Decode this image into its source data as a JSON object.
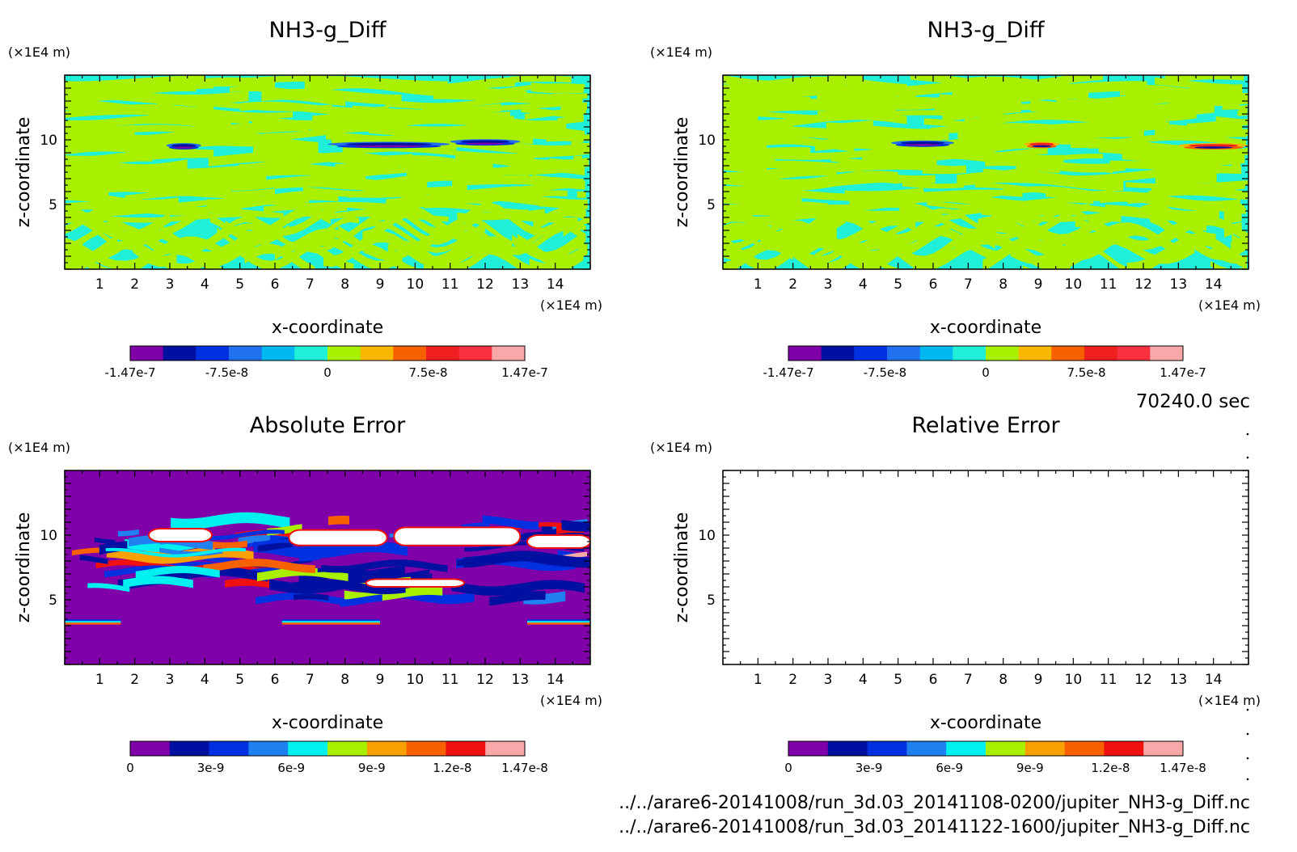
{
  "time_label": "70240.0 sec",
  "files": [
    "../../arare6-20141008/run_3d.03_20141108-0200/jupiter_NH3-g_Diff.nc",
    "../../arare6-20141008/run_3d.03_20141122-1600/jupiter_NH3-g_Diff.nc"
  ],
  "colors": {
    "diff_levels": [
      "#7f00a8",
      "#0010a0",
      "#0030e0",
      "#2070f0",
      "#00b8f0",
      "#20f0d8",
      "#a8f000",
      "#f8b800",
      "#f86000",
      "#f02020",
      "#f83040",
      "#f8a8a8"
    ],
    "err_levels": [
      "#7f00a8",
      "#0010a0",
      "#0030e0",
      "#2080f0",
      "#00f0f0",
      "#a8f000",
      "#f8a000",
      "#f86000",
      "#f01010",
      "#f8a8a8"
    ]
  },
  "chart_data": [
    {
      "type": "heatmap",
      "title": "NH3-g_Diff",
      "xlabel": "x-coordinate",
      "ylabel": "z-coordinate",
      "x_unit": "(×1E4 m)",
      "y_unit": "(×1E4 m)",
      "xlim": [
        0,
        15
      ],
      "ylim": [
        0,
        15
      ],
      "x_ticks": [
        "1",
        "2",
        "3",
        "4",
        "5",
        "6",
        "7",
        "8",
        "9",
        "10",
        "11",
        "12",
        "13",
        "14"
      ],
      "y_ticks": [
        "5",
        "10"
      ],
      "colorbar": {
        "min": -1.47e-07,
        "max": 1.47e-07,
        "labels": [
          "-1.47e-7",
          "-7.5e-8",
          "0",
          "7.5e-8",
          "1.47e-7"
        ]
      },
      "fill": "diff",
      "seed": 3,
      "features": [
        {
          "x": [
            2.9,
            3.9
          ],
          "z": 9.5,
          "kind": "neg"
        },
        {
          "x": [
            7.5,
            11.0
          ],
          "z": 9.6,
          "kind": "neg"
        },
        {
          "x": [
            11.0,
            13.0
          ],
          "z": 9.8,
          "kind": "neg"
        }
      ]
    },
    {
      "type": "heatmap",
      "title": "NH3-g_Diff",
      "xlabel": "x-coordinate",
      "ylabel": "z-coordinate",
      "x_unit": "(×1E4 m)",
      "y_unit": "(×1E4 m)",
      "xlim": [
        0,
        15
      ],
      "ylim": [
        0,
        15
      ],
      "x_ticks": [
        "1",
        "2",
        "3",
        "4",
        "5",
        "6",
        "7",
        "8",
        "9",
        "10",
        "11",
        "12",
        "13",
        "14"
      ],
      "y_ticks": [
        "5",
        "10"
      ],
      "colorbar": {
        "min": -1.47e-07,
        "max": 1.47e-07,
        "labels": [
          "-1.47e-7",
          "-7.5e-8",
          "0",
          "7.5e-8",
          "1.47e-7"
        ]
      },
      "fill": "diff",
      "seed": 11,
      "features": [
        {
          "x": [
            4.8,
            6.6
          ],
          "z": 9.7,
          "kind": "neg"
        },
        {
          "x": [
            8.6,
            9.6
          ],
          "z": 9.6,
          "kind": "pos"
        },
        {
          "x": [
            13.0,
            15.0
          ],
          "z": 9.5,
          "kind": "pos"
        }
      ]
    },
    {
      "type": "heatmap",
      "title": "Absolute Error",
      "xlabel": "x-coordinate",
      "ylabel": "z-coordinate",
      "x_unit": "(×1E4 m)",
      "y_unit": "(×1E4 m)",
      "xlim": [
        0,
        15
      ],
      "ylim": [
        0,
        15
      ],
      "x_ticks": [
        "1",
        "2",
        "3",
        "4",
        "5",
        "6",
        "7",
        "8",
        "9",
        "10",
        "11",
        "12",
        "13",
        "14"
      ],
      "y_ticks": [
        "5",
        "10"
      ],
      "colorbar": {
        "min": 0,
        "max": 1.47e-08,
        "labels": [
          "0",
          "3e-9",
          "6e-9",
          "9e-9",
          "1.2e-8",
          "1.47e-8"
        ]
      },
      "fill": "abs",
      "seed": 23,
      "error_band_z": [
        4.8,
        11.2
      ],
      "saturated_regions": [
        {
          "x": [
            2.4,
            4.2
          ],
          "z": [
            9.5,
            10.5
          ]
        },
        {
          "x": [
            6.4,
            9.2
          ],
          "z": [
            9.2,
            10.4
          ]
        },
        {
          "x": [
            9.4,
            13.0
          ],
          "z": [
            9.2,
            10.6
          ]
        },
        {
          "x": [
            13.2,
            15.0
          ],
          "z": [
            9.0,
            10.0
          ]
        },
        {
          "x": [
            8.6,
            11.4
          ],
          "z": [
            6.0,
            6.6
          ]
        }
      ],
      "lower_streaks_z": 3.3
    },
    {
      "type": "heatmap",
      "title": "Relative Error",
      "xlabel": "x-coordinate",
      "ylabel": "z-coordinate",
      "x_unit": "(×1E4 m)",
      "y_unit": "(×1E4 m)",
      "xlim": [
        0,
        15
      ],
      "ylim": [
        0,
        15
      ],
      "x_ticks": [
        "1",
        "2",
        "3",
        "4",
        "5",
        "6",
        "7",
        "8",
        "9",
        "10",
        "11",
        "12",
        "13",
        "14"
      ],
      "y_ticks": [
        "5",
        "10"
      ],
      "colorbar": {
        "min": 0,
        "max": 1.47e-08,
        "labels": [
          "0",
          "3e-9",
          "6e-9",
          "9e-9",
          "1.2e-8",
          "1.47e-8"
        ]
      },
      "fill": "none",
      "seed": 0
    }
  ]
}
